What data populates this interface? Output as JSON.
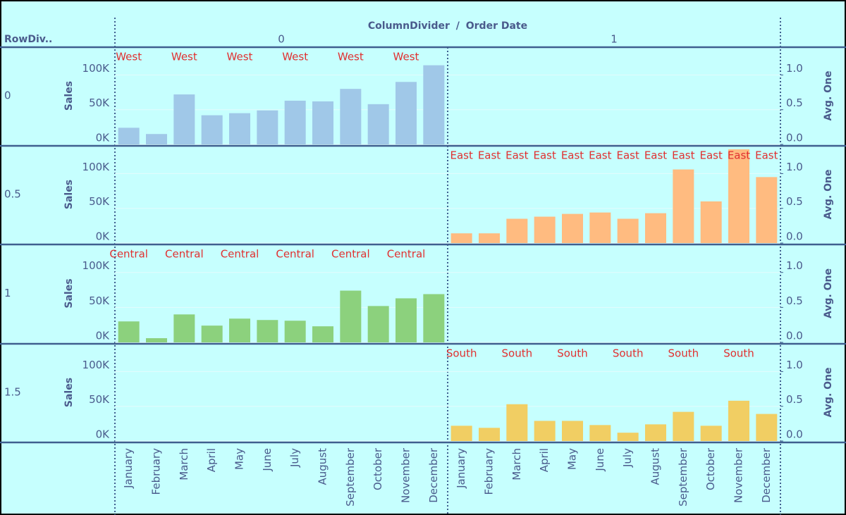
{
  "header": {
    "row_header": "RowDiv..",
    "column_header": "ColumnDivider",
    "separator": "/",
    "column_field": "Order Date",
    "columns": [
      "0",
      "1"
    ]
  },
  "chart_data": [
    {
      "type": "bar",
      "row_label": "0",
      "column": 0,
      "y_label": "Sales",
      "y2_label": "Avg. One",
      "color": "#a0c8e8",
      "grid": true,
      "categories": [
        "January",
        "February",
        "March",
        "April",
        "May",
        "June",
        "July",
        "August",
        "September",
        "October",
        "November",
        "December"
      ],
      "values": [
        24000,
        15000,
        72000,
        42000,
        45000,
        49000,
        63000,
        62000,
        80000,
        58000,
        90000,
        114000
      ],
      "mark_labels": [
        "West",
        null,
        "West",
        null,
        "West",
        null,
        "West",
        null,
        "West",
        null,
        "West",
        null
      ],
      "ylim": [
        0,
        140000
      ],
      "yticks": [
        {
          "value": 0,
          "label": "0K"
        },
        {
          "value": 50000,
          "label": "50K"
        },
        {
          "value": 100000,
          "label": "100K"
        }
      ],
      "y2lim": [
        0,
        1.4
      ],
      "y2ticks": [
        {
          "value": 0,
          "label": "0.0"
        },
        0.5,
        {
          "value": 1,
          "label": "1.0"
        }
      ]
    },
    {
      "type": "bar",
      "row_label": "0.5",
      "column": 1,
      "y_label": "Sales",
      "y2_label": "Avg. One",
      "color": "#ffbb80",
      "grid": true,
      "categories": [
        "January",
        "February",
        "March",
        "April",
        "May",
        "June",
        "July",
        "August",
        "September",
        "October",
        "November",
        "December"
      ],
      "values": [
        14000,
        14000,
        35000,
        38000,
        42000,
        44000,
        35000,
        43000,
        106000,
        60000,
        135000,
        95000
      ],
      "mark_labels": [
        "East",
        "East",
        "East",
        "East",
        "East",
        "East",
        "East",
        "East",
        "East",
        "East",
        "East",
        "East"
      ],
      "ylim": [
        0,
        140000
      ],
      "yticks": [
        {
          "value": 0,
          "label": "0K"
        },
        {
          "value": 50000,
          "label": "50K"
        },
        {
          "value": 100000,
          "label": "100K"
        }
      ],
      "y2lim": [
        0,
        1.4
      ],
      "y2ticks": [
        {
          "value": 0,
          "label": "0.0"
        },
        0.5,
        {
          "value": 1,
          "label": "1.0"
        }
      ]
    },
    {
      "type": "bar",
      "row_label": "1",
      "column": 0,
      "y_label": "Sales",
      "y2_label": "Avg. One",
      "color": "#8cd17d",
      "grid": true,
      "categories": [
        "January",
        "February",
        "March",
        "April",
        "May",
        "June",
        "July",
        "August",
        "September",
        "October",
        "November",
        "December"
      ],
      "values": [
        30000,
        6000,
        40000,
        24000,
        34000,
        32000,
        31000,
        23000,
        74000,
        52000,
        63000,
        69000
      ],
      "mark_labels": [
        "Central",
        null,
        "Central",
        null,
        "Central",
        null,
        "Central",
        null,
        "Central",
        null,
        "Central",
        null
      ],
      "ylim": [
        0,
        140000
      ],
      "yticks": [
        {
          "value": 0,
          "label": "0K"
        },
        {
          "value": 50000,
          "label": "50K"
        },
        {
          "value": 100000,
          "label": "100K"
        }
      ],
      "y2lim": [
        0,
        1.4
      ],
      "y2ticks": [
        {
          "value": 0,
          "label": "0.0"
        },
        0.5,
        {
          "value": 1,
          "label": "1.0"
        }
      ]
    },
    {
      "type": "bar",
      "row_label": "1.5",
      "column": 1,
      "y_label": "Sales",
      "y2_label": "Avg. One",
      "color": "#f1ce63",
      "grid": true,
      "categories": [
        "January",
        "February",
        "March",
        "April",
        "May",
        "June",
        "July",
        "August",
        "September",
        "October",
        "November",
        "December"
      ],
      "values": [
        22000,
        19000,
        53000,
        29000,
        29000,
        23000,
        12000,
        24000,
        42000,
        22000,
        58000,
        39000
      ],
      "mark_labels": [
        "South",
        null,
        "South",
        null,
        "South",
        null,
        "South",
        null,
        "South",
        null,
        "South",
        null
      ],
      "ylim": [
        0,
        140000
      ],
      "yticks": [
        {
          "value": 0,
          "label": "0K"
        },
        {
          "value": 50000,
          "label": "50K"
        },
        {
          "value": 100000,
          "label": "100K"
        }
      ],
      "y2lim": [
        0,
        1.4
      ],
      "y2ticks": [
        {
          "value": 0,
          "label": "0.0"
        },
        0.5,
        {
          "value": 1,
          "label": "1.0"
        }
      ]
    }
  ]
}
